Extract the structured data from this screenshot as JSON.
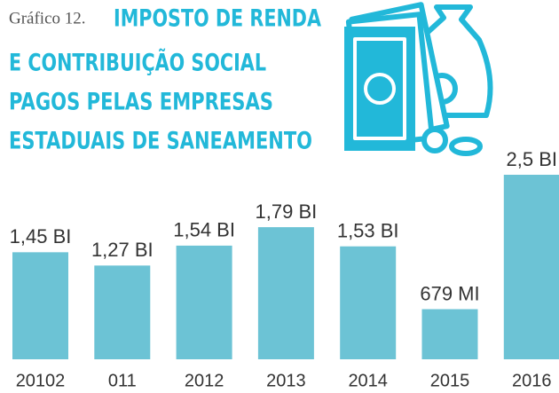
{
  "chart_data": {
    "type": "bar",
    "label": "Gráfico 12.",
    "title": [
      "IMPOSTO DE RENDA",
      "E CONTRIBUIÇÃO SOCIAL",
      "PAGOS PELAS EMPRESAS",
      "ESTADUAIS DE SANEAMENTO"
    ],
    "categories": [
      "20102",
      "011",
      "2012",
      "2013",
      "2014",
      "2015",
      "2016"
    ],
    "values": [
      1.45,
      1.27,
      1.54,
      1.79,
      1.53,
      0.679,
      2.5
    ],
    "value_labels": [
      "1,45 BI",
      "1,27 BI",
      "1,54 BI",
      "1,79 BI",
      "1,53 BI",
      "679 MI",
      "2,5 BI"
    ],
    "color": "#6cc3d5"
  }
}
